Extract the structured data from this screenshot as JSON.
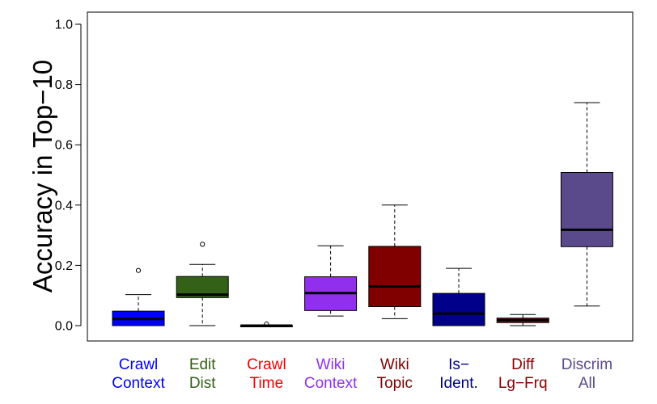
{
  "chart_data": {
    "type": "boxplot",
    "title": "",
    "xlabel": "",
    "ylabel": "Accuracy in Top−10",
    "ylim": [
      -0.04,
      1.02
    ],
    "yticks": [
      0.0,
      0.2,
      0.4,
      0.6,
      0.8,
      1.0
    ],
    "ytick_labels": [
      "0.0",
      "0.2",
      "0.4",
      "0.6",
      "0.8",
      "1.0"
    ],
    "grid": false,
    "series": [
      {
        "label_lines": [
          "Crawl",
          "Context"
        ],
        "color": "#0000ff",
        "label_color": "#0000ff",
        "whisker_low": 0.0,
        "q1": 0.0,
        "median": 0.022,
        "q3": 0.048,
        "whisker_high": 0.103,
        "outliers": [
          0.183
        ]
      },
      {
        "label_lines": [
          "Edit",
          "Dist"
        ],
        "color": "#336118",
        "label_color": "#336118",
        "whisker_low": 0.0,
        "q1": 0.093,
        "median": 0.103,
        "q3": 0.163,
        "whisker_high": 0.203,
        "outliers": [
          0.27
        ]
      },
      {
        "label_lines": [
          "Crawl",
          "Time"
        ],
        "color": "#ff0000",
        "label_color": "#ee0000",
        "whisker_low": 0.0,
        "q1": 0.0,
        "median": 0.0,
        "q3": 0.0,
        "whisker_high": 0.0,
        "outliers": [
          0.005
        ]
      },
      {
        "label_lines": [
          "Wiki",
          "Context"
        ],
        "color": "#9030ee",
        "label_color": "#9030ee",
        "whisker_low": 0.032,
        "q1": 0.05,
        "median": 0.108,
        "q3": 0.162,
        "whisker_high": 0.265,
        "outliers": []
      },
      {
        "label_lines": [
          "Wiki",
          "Topic"
        ],
        "color": "#800000",
        "label_color": "#800000",
        "whisker_low": 0.023,
        "q1": 0.063,
        "median": 0.13,
        "q3": 0.263,
        "whisker_high": 0.4,
        "outliers": []
      },
      {
        "label_lines": [
          "Is−",
          "Ident."
        ],
        "color": "#00008b",
        "label_color": "#00008b",
        "whisker_low": 0.0,
        "q1": 0.0,
        "median": 0.04,
        "q3": 0.107,
        "whisker_high": 0.19,
        "outliers": []
      },
      {
        "label_lines": [
          "Diff",
          "Lg−Frq"
        ],
        "color": "#8b1a1a",
        "label_color": "#8b0000",
        "whisker_low": 0.0,
        "q1": 0.01,
        "median": 0.018,
        "q3": 0.025,
        "whisker_high": 0.037,
        "outliers": []
      },
      {
        "label_lines": [
          "Discrim",
          "All"
        ],
        "color": "#5b4a8b",
        "label_color": "#5b4a8b",
        "whisker_low": 0.065,
        "q1": 0.262,
        "median": 0.318,
        "q3": 0.508,
        "whisker_high": 0.74,
        "outliers": []
      }
    ]
  }
}
